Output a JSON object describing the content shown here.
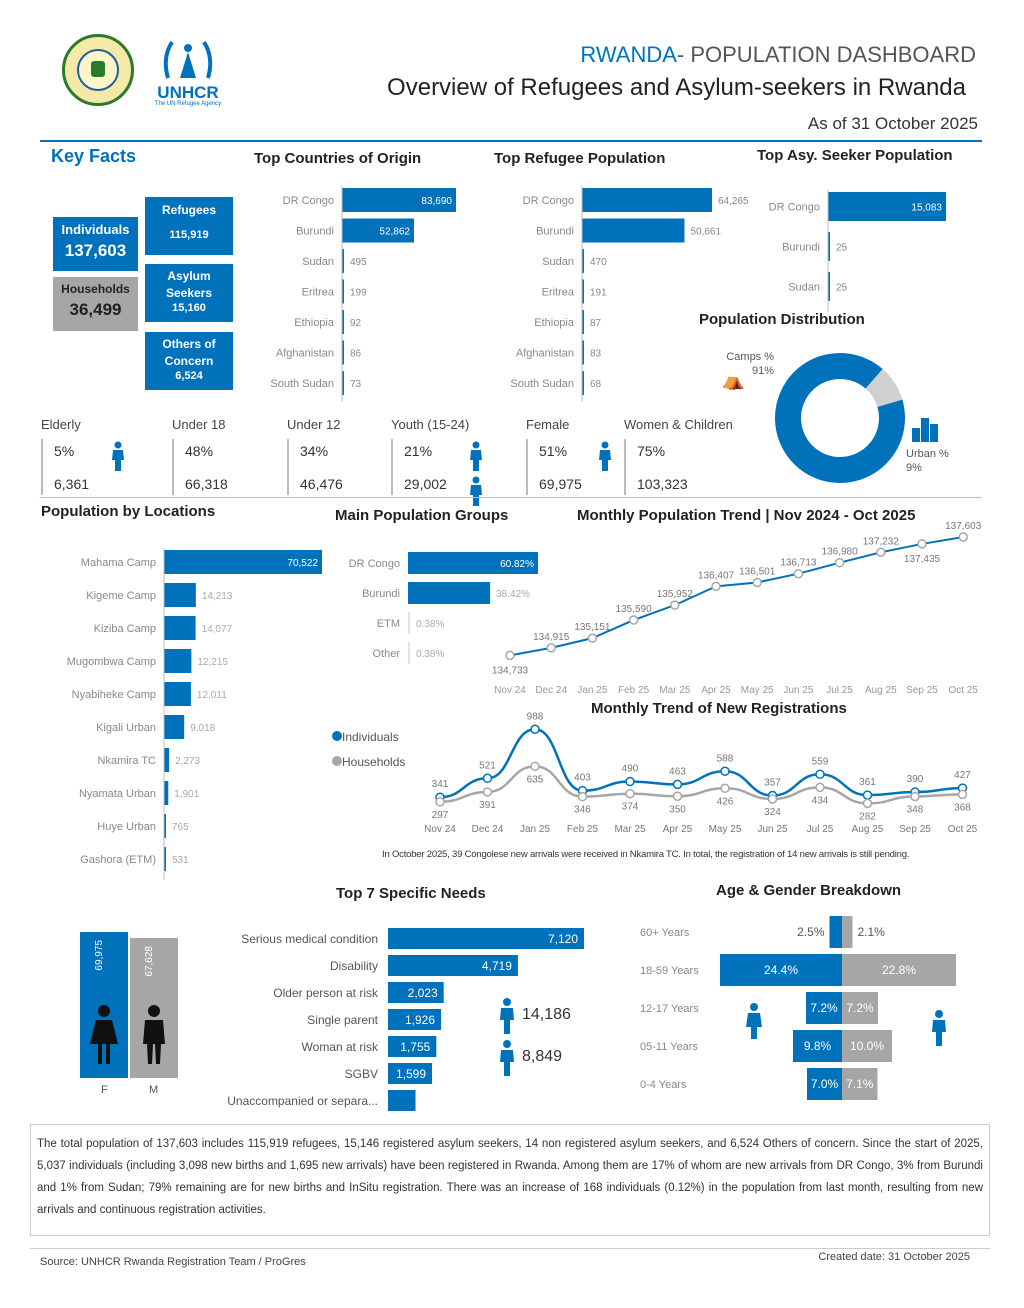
{
  "header": {
    "title_prefix": "RWANDA",
    "title_rest": "- POPULATION DASHBOARD",
    "subtitle": "Overview of Refugees and Asylum-seekers in Rwanda",
    "as_of": "As of 31 October 2025",
    "unhcr_text": "UNHCR",
    "unhcr_tagline": "The UN Refugee Agency"
  },
  "key_facts": {
    "title": "Key Facts",
    "individuals_label": "Individuals",
    "individuals_value": "137,603",
    "households_label": "Households",
    "households_value": "36,499",
    "refugees_label": "Refugees",
    "refugees_value": "115,919",
    "asylum_label": "Asylum Seekers",
    "asylum_value": "15,160",
    "others_label": "Others of Concern",
    "others_value": "6,524"
  },
  "stats": [
    {
      "title": "Elderly",
      "pct": "5%",
      "num": "6,361"
    },
    {
      "title": "Under 18",
      "pct": "48%",
      "num": "66,318"
    },
    {
      "title": "Under 12",
      "pct": "34%",
      "num": "46,476"
    },
    {
      "title": "Youth (15-24)",
      "pct": "21%",
      "num": "29,002"
    },
    {
      "title": "Female",
      "pct": "51%",
      "num": "69,975"
    },
    {
      "title": "Women & Children",
      "pct": "75%",
      "num": "103,323"
    }
  ],
  "distribution": {
    "title": "Population Distribution",
    "camps_label": "Camps %",
    "camps_pct": "91%",
    "urban_label": "Urban %",
    "urban_pct": "9%"
  },
  "notes": {
    "registration_note": "In October 2025, 39 Congolese new arrivals were received in Nkamira TC. In total, the registration of 14 new arrivals is still pending.",
    "summary": "The total population of 137,603 includes 115,919 refugees, 15,146 registered asylum seekers, 14 non registered asylum seekers, and 6,524 Others of concern. Since the start of 2025, 5,037 individuals (including 3,098 new births and 1,695 new arrivals) have been registered in Rwanda. Among them are 17% of whom are new arrivals from DR Congo, 3% from Burundi and 1% from Sudan; 79% remaining are for new births and InSitu registration. There was an increase of 168 individuals (0.12%) in the population from last month, resulting from new arrivals and continuous registration activities.",
    "source": "Source: UNHCR Rwanda Registration Team / ProGres",
    "created": "Created date: 31 October 2025"
  },
  "needs_side": {
    "v1": "14,186",
    "v2": "8,849"
  },
  "gender": {
    "f_value": "69,975",
    "m_value": "67,628",
    "f_label": "F",
    "m_label": "M"
  },
  "chart_data": [
    {
      "type": "bar",
      "id": "origin",
      "title": "Top Countries of Origin",
      "categories": [
        "DR Congo",
        "Burundi",
        "Sudan",
        "Eritrea",
        "Ethiopia",
        "Afghanistan",
        "South Sudan"
      ],
      "values": [
        83690,
        52862,
        495,
        199,
        92,
        86,
        73
      ],
      "labels": [
        "83,690",
        "52,862",
        "495",
        "199",
        "92",
        "86",
        "73"
      ]
    },
    {
      "type": "bar",
      "id": "refugee",
      "title": "Top Refugee Population",
      "categories": [
        "DR Congo",
        "Burundi",
        "Sudan",
        "Eritrea",
        "Ethiopia",
        "Afghanistan",
        "South Sudan"
      ],
      "values": [
        64265,
        50661,
        470,
        191,
        87,
        83,
        68
      ],
      "labels": [
        "64,265",
        "50,661",
        "470",
        "191",
        "87",
        "83",
        "68"
      ]
    },
    {
      "type": "bar",
      "id": "asylum",
      "title": "Top Asy. Seeker Population",
      "categories": [
        "DR Congo",
        "Burundi",
        "Sudan"
      ],
      "values": [
        15083,
        25,
        25
      ],
      "labels": [
        "15,083",
        "25",
        "25"
      ]
    },
    {
      "type": "pie",
      "id": "distribution",
      "categories": [
        "Camps",
        "Urban"
      ],
      "values": [
        91,
        9
      ]
    },
    {
      "type": "bar",
      "id": "locations",
      "title": "Population by Locations",
      "categories": [
        "Mahama Camp",
        "Kigeme Camp",
        "Kiziba Camp",
        "Mugombwa Camp",
        "Nyabiheke Camp",
        "Kigali Urban",
        "Nkamira TC",
        "Nyamata Urban",
        "Huye Urban",
        "Gashora (ETM)"
      ],
      "values": [
        70522,
        14213,
        14077,
        12215,
        12011,
        9018,
        2273,
        1901,
        765,
        531
      ],
      "labels": [
        "70,522",
        "14,213",
        "14,077",
        "12,215",
        "12,011",
        "9,018",
        "2,273",
        "1,901",
        "765",
        "531"
      ]
    },
    {
      "type": "bar",
      "id": "groups",
      "title": "Main Population Groups",
      "categories": [
        "DR Congo",
        "Burundi",
        "ETM",
        "Other"
      ],
      "values": [
        60.82,
        38.42,
        0.38,
        0.38
      ],
      "labels": [
        "60.82%",
        "38.42%",
        "0.38%",
        "0.38%"
      ]
    },
    {
      "type": "line",
      "id": "trend",
      "title": "Monthly Population Trend | Nov 2024 - Oct 2025",
      "x": [
        "Nov 24",
        "Dec 24",
        "Jan 25",
        "Feb 25",
        "Mar 25",
        "Apr 25",
        "May 25",
        "Jun 25",
        "Jul 25",
        "Aug 25",
        "Sep 25",
        "Oct 25"
      ],
      "values": [
        134733,
        134915,
        135151,
        135590,
        135952,
        136407,
        136501,
        136713,
        136980,
        137232,
        137435,
        137603
      ],
      "labels": [
        "134,733",
        "134,915",
        "135,151",
        "135,590",
        "135,952",
        "136,407",
        "136,501",
        "136,713",
        "136,980",
        "137,232",
        "137,435",
        "137,603"
      ]
    },
    {
      "type": "line",
      "id": "registrations",
      "title": "Monthly Trend of New Registrations",
      "x": [
        "Nov 24",
        "Dec 24",
        "Jan 25",
        "Feb 25",
        "Mar 25",
        "Apr 25",
        "May 25",
        "Jun 25",
        "Jul 25",
        "Aug 25",
        "Sep 25",
        "Oct 25"
      ],
      "series": [
        {
          "name": "Individuals",
          "values": [
            341,
            521,
            988,
            403,
            490,
            463,
            588,
            357,
            559,
            361,
            390,
            427
          ]
        },
        {
          "name": "Households",
          "values": [
            297,
            391,
            635,
            346,
            374,
            350,
            426,
            324,
            434,
            282,
            348,
            368
          ]
        }
      ]
    },
    {
      "type": "bar",
      "id": "needs",
      "title": "Top 7 Specific Needs",
      "categories": [
        "Serious medical condition",
        "Disability",
        "Older person at risk",
        "Single parent",
        "Woman at risk",
        "SGBV",
        "Unaccompanied or separa..."
      ],
      "values": [
        7120,
        4719,
        2023,
        1926,
        1755,
        1599,
        1000
      ],
      "labels": [
        "7,120",
        "4,719",
        "2,023",
        "1,926",
        "1,755",
        "1,599",
        ""
      ]
    },
    {
      "type": "bar",
      "id": "agegender",
      "title": "Age & Gender Breakdown",
      "categories": [
        "60+ Years",
        "18-59 Years",
        "12-17 Years",
        "05-11 Years",
        "0-4 Years"
      ],
      "series": [
        {
          "name": "Female",
          "values": [
            2.5,
            24.4,
            7.2,
            9.8,
            7.0
          ]
        },
        {
          "name": "Male",
          "values": [
            2.1,
            22.8,
            7.2,
            10.0,
            7.1
          ]
        }
      ]
    }
  ]
}
